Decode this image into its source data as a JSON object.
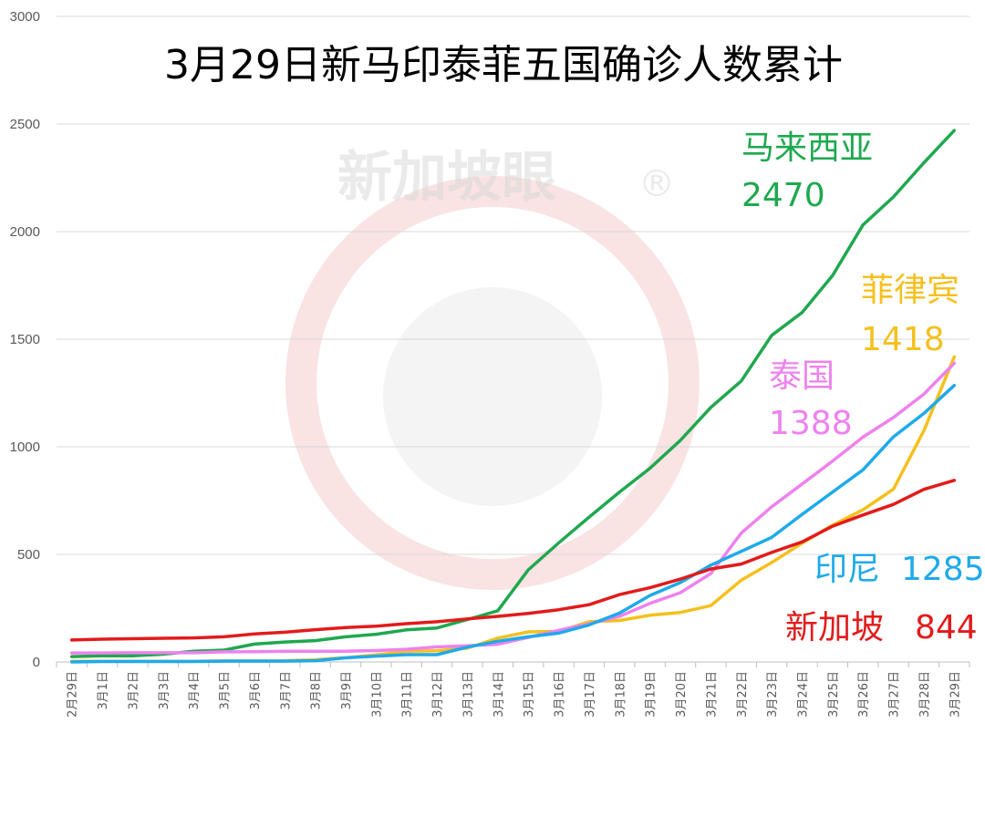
{
  "chart_data": {
    "type": "line",
    "title": "3月29日新马印泰菲五国确诊人数累计",
    "ylim": [
      0,
      3000
    ],
    "yticks": [
      "0",
      "500",
      "1000",
      "1500",
      "2000",
      "2500",
      "3000"
    ],
    "grid": true,
    "legend": "none",
    "categories": [
      "2月29日",
      "3月1日",
      "3月2日",
      "3月3日",
      "3月4日",
      "3月5日",
      "3月6日",
      "3月7日",
      "3月8日",
      "3月9日",
      "3月10日",
      "3月11日",
      "3月12日",
      "3月13日",
      "3月14日",
      "3月15日",
      "3月16日",
      "3月17日",
      "3月18日",
      "3月19日",
      "3月20日",
      "3月21日",
      "3月22日",
      "3月23日",
      "3月24日",
      "3月25日",
      "3月26日",
      "3月27日",
      "3月28日",
      "3月29日"
    ],
    "series": [
      {
        "name": "马来西亚",
        "label_value": "2470",
        "color": "#1fa84f",
        "values": [
          25,
          29,
          29,
          36,
          50,
          55,
          83,
          93,
          99,
          117,
          129,
          149,
          158,
          197,
          238,
          428,
          553,
          673,
          790,
          900,
          1030,
          1183,
          1306,
          1518,
          1624,
          1796,
          2031,
          2161,
          2320,
          2470
        ]
      },
      {
        "name": "菲律宾",
        "label_value": "1418",
        "color": "#f5c01d",
        "values": [
          3,
          3,
          3,
          3,
          3,
          5,
          5,
          6,
          10,
          20,
          33,
          49,
          52,
          64,
          111,
          140,
          142,
          187,
          193,
          217,
          230,
          262,
          380,
          462,
          552,
          636,
          707,
          803,
          1075,
          1418
        ]
      },
      {
        "name": "泰国",
        "label_value": "1388",
        "color": "#ee82ee",
        "values": [
          42,
          42,
          43,
          43,
          43,
          47,
          48,
          50,
          50,
          50,
          53,
          59,
          70,
          75,
          82,
          114,
          147,
          177,
          212,
          272,
          322,
          411,
          599,
          721,
          827,
          934,
          1045,
          1136,
          1245,
          1388
        ]
      },
      {
        "name": "印尼",
        "label_value": "1285",
        "color": "#1eaaea",
        "values": [
          0,
          2,
          2,
          2,
          2,
          4,
          4,
          4,
          6,
          19,
          27,
          34,
          34,
          69,
          96,
          117,
          134,
          172,
          227,
          309,
          369,
          450,
          514,
          579,
          686,
          790,
          893,
          1046,
          1155,
          1285
        ]
      },
      {
        "name": "新加坡",
        "label_value": "844",
        "color": "#e21b1b",
        "values": [
          102,
          106,
          108,
          110,
          112,
          117,
          130,
          138,
          150,
          160,
          166,
          178,
          187,
          200,
          212,
          226,
          243,
          266,
          313,
          345,
          385,
          432,
          455,
          509,
          558,
          631,
          683,
          732,
          802,
          844
        ]
      }
    ]
  },
  "watermark": {
    "text": "新加坡眼",
    "symbol": "®"
  }
}
